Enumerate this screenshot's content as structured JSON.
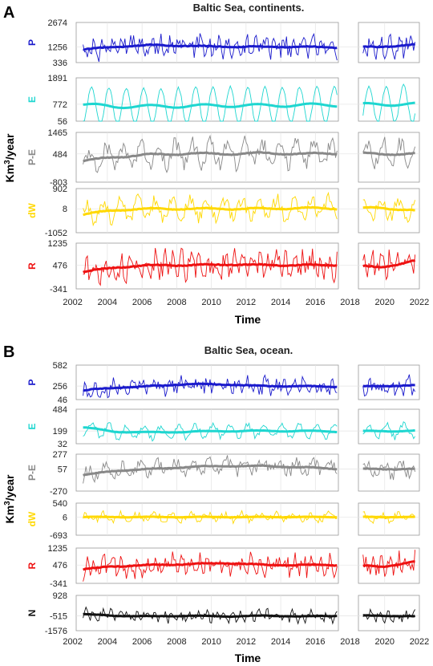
{
  "chart_data": [
    {
      "type": "line",
      "panel_letter": "A",
      "title": "Baltic Sea, continents.",
      "xlabel": "Time",
      "ylabel": "Km",
      "ylabel_sup": "3",
      "ylabel_tail": "/year",
      "xlim": [
        2002.2,
        2022
      ],
      "xticks": [
        2002,
        2004,
        2006,
        2008,
        2010,
        2012,
        2014,
        2016,
        2018,
        2020,
        2022
      ],
      "gap": [
        2017.3,
        2018.7
      ],
      "series": [
        {
          "name": "P",
          "color": "#1a1acc",
          "ylim": [
            336,
            2674
          ],
          "ticks": [
            2674,
            1256,
            336
          ],
          "mean": 1256,
          "amp": 300,
          "period": 0.55,
          "noise": 500,
          "trend": [
            1056,
            1256,
            1356,
            1306,
            1256,
            1256,
            1256,
            1206,
            1256,
            1406
          ]
        },
        {
          "name": "E",
          "color": "#1ed6d0",
          "ylim": [
            56,
            1891
          ],
          "ticks": [
            1891,
            772,
            56
          ],
          "mean": 772,
          "amp": 790,
          "period": 1.0,
          "noise": 60,
          "trend": [
            772,
            680,
            680,
            700,
            720,
            720,
            740,
            740,
            772,
            780
          ]
        },
        {
          "name": "P-E",
          "color": "#888888",
          "ylim": [
            -803,
            1465
          ],
          "ticks": [
            1465,
            484,
            -803
          ],
          "mean": 484,
          "amp": 500,
          "period": 1.0,
          "noise": 350,
          "trend": [
            100,
            350,
            450,
            500,
            484,
            520,
            484,
            520,
            484,
            484
          ]
        },
        {
          "name": "dW",
          "color": "#ffd800",
          "ylim": [
            -1052,
            902
          ],
          "ticks": [
            902,
            8,
            -1052
          ],
          "mean": 8,
          "amp": 420,
          "period": 1.0,
          "noise": 280,
          "trend": [
            -300,
            -50,
            8,
            8,
            8,
            8,
            40,
            8,
            60,
            -100
          ]
        },
        {
          "name": "R",
          "color": "#ee1111",
          "ylim": [
            -341,
            1235
          ],
          "ticks": [
            1235,
            476,
            -341
          ],
          "mean": 476,
          "amp": 250,
          "period": 0.5,
          "noise": 380,
          "trend": [
            200,
            400,
            476,
            476,
            500,
            476,
            476,
            476,
            400,
            650
          ]
        }
      ]
    },
    {
      "type": "line",
      "panel_letter": "B",
      "title": "Baltic Sea, ocean.",
      "xlabel": "Time",
      "ylabel": "Km",
      "ylabel_sup": "3",
      "ylabel_tail": "/year",
      "xlim": [
        2002.2,
        2022
      ],
      "xticks": [
        2002,
        2004,
        2006,
        2008,
        2010,
        2012,
        2014,
        2016,
        2018,
        2020,
        2022
      ],
      "gap": [
        2017.3,
        2018.7
      ],
      "series": [
        {
          "name": "P",
          "color": "#1a1acc",
          "ylim": [
            46,
            582
          ],
          "ticks": [
            582,
            256,
            46
          ],
          "mean": 256,
          "amp": 60,
          "period": 0.55,
          "noise": 120,
          "trend": [
            180,
            230,
            256,
            290,
            280,
            256,
            256,
            240,
            256,
            270
          ]
        },
        {
          "name": "E",
          "color": "#1ed6d0",
          "ylim": [
            32,
            484
          ],
          "ticks": [
            484,
            199,
            32
          ],
          "mean": 199,
          "amp": 80,
          "period": 1.0,
          "noise": 40,
          "trend": [
            260,
            190,
            180,
            190,
            199,
            199,
            199,
            190,
            199,
            199
          ]
        },
        {
          "name": "P-E",
          "color": "#888888",
          "ylim": [
            -270,
            277
          ],
          "ticks": [
            277,
            57,
            -270
          ],
          "mean": 57,
          "amp": 80,
          "period": 1.0,
          "noise": 90,
          "trend": [
            -50,
            30,
            57,
            90,
            100,
            100,
            80,
            57,
            57,
            57
          ]
        },
        {
          "name": "dW",
          "color": "#ffd800",
          "ylim": [
            -693,
            540
          ],
          "ticks": [
            540,
            6,
            -693
          ],
          "mean": 6,
          "amp": 120,
          "period": 1.0,
          "noise": 130,
          "trend": [
            6,
            6,
            6,
            6,
            6,
            6,
            6,
            6,
            6,
            6
          ]
        },
        {
          "name": "R",
          "color": "#ee1111",
          "ylim": [
            -341,
            1235
          ],
          "ticks": [
            1235,
            476,
            -341
          ],
          "mean": 476,
          "amp": 250,
          "period": 0.5,
          "noise": 380,
          "trend": [
            250,
            420,
            476,
            520,
            560,
            476,
            476,
            476,
            400,
            650
          ]
        },
        {
          "name": "N",
          "color": "#111111",
          "ylim": [
            -1576,
            928
          ],
          "ticks": [
            928,
            -515,
            -1576
          ],
          "mean": -515,
          "amp": 250,
          "period": 0.5,
          "noise": 320,
          "trend": [
            -380,
            -515,
            -560,
            -515,
            -560,
            -515,
            -560,
            -515,
            -515,
            -560
          ]
        }
      ]
    }
  ]
}
